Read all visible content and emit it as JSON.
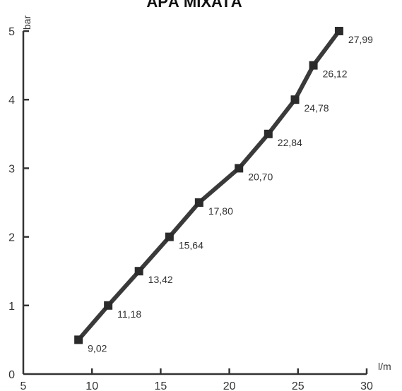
{
  "chart_data": {
    "type": "line",
    "title": "APĂ MIXATĂ",
    "xlabel": "l/m",
    "ylabel": "bar",
    "xlim": [
      5,
      30
    ],
    "ylim": [
      0,
      5
    ],
    "xticks": [
      5,
      10,
      15,
      20,
      25,
      30
    ],
    "yticks": [
      0,
      1,
      2,
      3,
      4,
      5
    ],
    "grid": false,
    "series": [
      {
        "x": [
          9.02,
          11.18,
          13.42,
          15.64,
          17.8,
          20.7,
          22.84,
          24.78,
          26.12,
          27.99
        ],
        "y": [
          0.5,
          1.0,
          1.5,
          2.0,
          2.5,
          3.0,
          3.5,
          4.0,
          4.5,
          5.0
        ],
        "point_labels": [
          "9,02",
          "11,18",
          "13,42",
          "15,64",
          "17,80",
          "20,70",
          "22,84",
          "24,78",
          "26,12",
          "27,99"
        ]
      }
    ]
  }
}
